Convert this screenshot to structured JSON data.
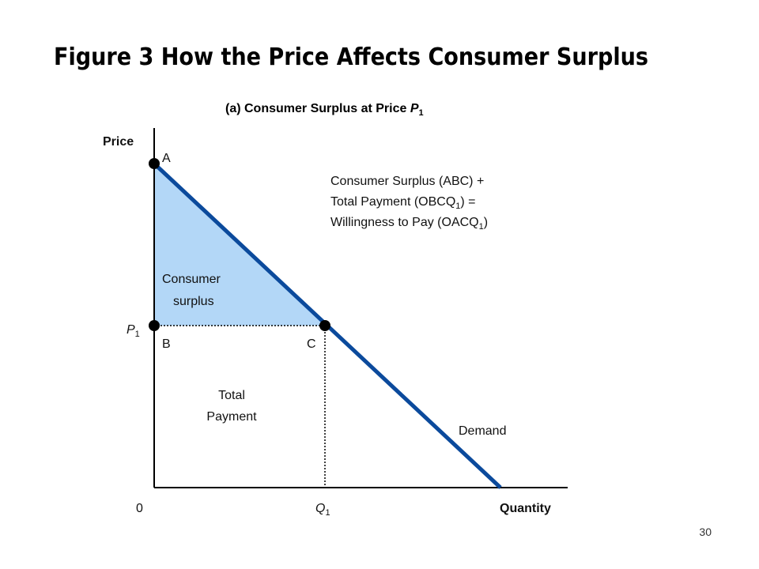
{
  "title": "Figure 3 How the Price Affects Consumer Surplus",
  "subtitle": {
    "text": "(a) Consumer Surplus at Price ",
    "symbol": "P",
    "sub": "1"
  },
  "axes": {
    "y_label": "Price",
    "x_label": "Quantity",
    "origin": "0"
  },
  "points": {
    "A": "A",
    "B": "B",
    "C": "C"
  },
  "p1": {
    "symbol": "P",
    "sub": "1"
  },
  "q1": {
    "symbol": "Q",
    "sub": "1"
  },
  "annotation": {
    "line1": "Consumer Surplus (ABC) +",
    "line2": {
      "text": "Total Payment (OBCQ",
      "sub": "1",
      "tail": ") ="
    },
    "line3": {
      "text": "Willingness to Pay (OACQ",
      "sub": "1",
      "tail": ")"
    }
  },
  "regions": {
    "consumer_surplus": [
      "Consumer",
      "surplus"
    ],
    "total_payment": [
      "Total",
      "Payment"
    ]
  },
  "curve_label": "Demand",
  "page_number": "30"
}
